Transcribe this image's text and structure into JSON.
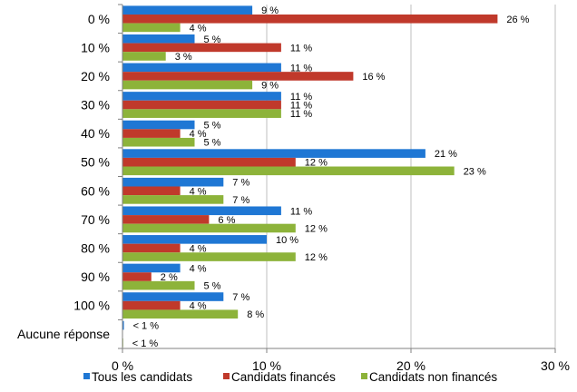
{
  "chart_data": {
    "type": "bar",
    "orientation": "horizontal",
    "title": "",
    "xlabel": "",
    "ylabel": "",
    "categories": [
      "0 %",
      "10 %",
      "20 %",
      "30 %",
      "40 %",
      "50 %",
      "60 %",
      "70 %",
      "80 %",
      "90 %",
      "100 %",
      "Aucune réponse"
    ],
    "series": [
      {
        "name": "Tous les candidats",
        "color": "#1F77D4",
        "values": [
          9,
          5,
          11,
          11,
          5,
          21,
          7,
          11,
          10,
          4,
          7,
          0.1
        ],
        "labels": [
          "9 %",
          "5 %",
          "11 %",
          "11 %",
          "5 %",
          "21 %",
          "7 %",
          "11 %",
          "10 %",
          "4 %",
          "7 %",
          "< 1 %"
        ]
      },
      {
        "name": "Candidats financés",
        "color": "#C0392B",
        "values": [
          26,
          11,
          16,
          11,
          4,
          12,
          4,
          6,
          4,
          2,
          4,
          0
        ],
        "labels": [
          "26 %",
          "11 %",
          "16 %",
          "11 %",
          "4 %",
          "12 %",
          "4 %",
          "6 %",
          "4 %",
          "2 %",
          "4 %",
          ""
        ]
      },
      {
        "name": "Candidats non financés",
        "color": "#8DB33A",
        "values": [
          4,
          3,
          9,
          11,
          5,
          23,
          7,
          12,
          12,
          5,
          8,
          0.05
        ],
        "labels": [
          "4 %",
          "3 %",
          "9 %",
          "11 %",
          "5 %",
          "23 %",
          "7 %",
          "12 %",
          "12 %",
          "5 %",
          "8 %",
          "< 1 %"
        ]
      }
    ],
    "xlim": [
      0,
      30
    ],
    "xticks": [
      0,
      10,
      20,
      30
    ],
    "xtick_labels": [
      "0 %",
      "10 %",
      "20 %",
      "30 %"
    ],
    "grid": true,
    "legend_position": "bottom"
  }
}
